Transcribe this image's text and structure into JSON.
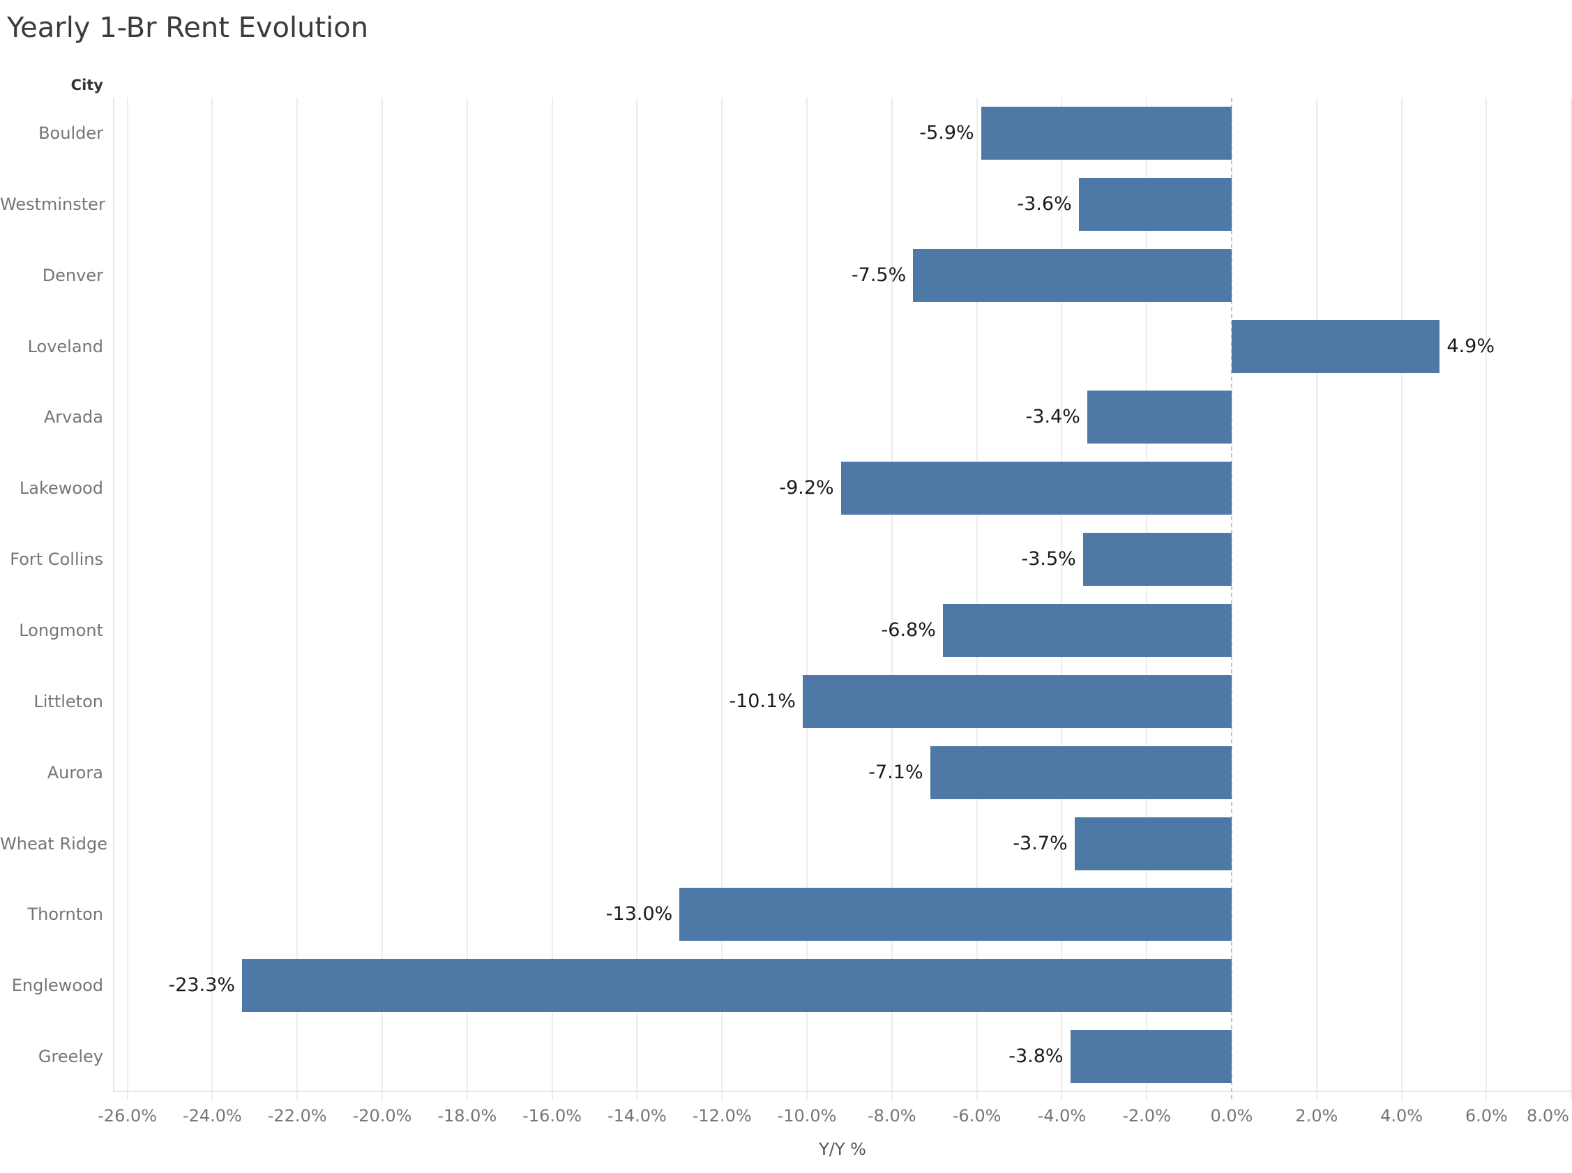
{
  "title": "Yearly 1-Br Rent Evolution",
  "category_axis_header": "City",
  "value_axis_title": "Y/Y %",
  "chart_data": {
    "type": "bar",
    "orientation": "horizontal",
    "title": "Yearly 1-Br Rent Evolution",
    "category_field": "City",
    "value_field": "Y/Y %",
    "grid": true,
    "xlim": [
      -26.34,
      8.0
    ],
    "tick_step_pct": 2,
    "categories": [
      "Boulder",
      "Westminster",
      "Denver",
      "Loveland",
      "Arvada",
      "Lakewood",
      "Fort Collins",
      "Longmont",
      "Littleton",
      "Aurora",
      "Wheat Ridge",
      "Thornton",
      "Englewood",
      "Greeley"
    ],
    "values": [
      -5.9,
      -3.6,
      -7.5,
      4.9,
      -3.4,
      -9.2,
      -3.5,
      -6.8,
      -10.1,
      -7.1,
      -3.7,
      -13.0,
      -23.3,
      -3.8
    ],
    "value_labels": [
      "-5.9%",
      "-3.6%",
      "-7.5%",
      "4.9%",
      "-3.4%",
      "-9.2%",
      "-3.5%",
      "-6.8%",
      "-10.1%",
      "-7.1%",
      "-3.7%",
      "-13.0%",
      "-23.3%",
      "-3.8%"
    ],
    "ticks": [
      {
        "v": -26,
        "label": "-26.0%"
      },
      {
        "v": -24,
        "label": "-24.0%"
      },
      {
        "v": -22,
        "label": "-22.0%"
      },
      {
        "v": -20,
        "label": "-20.0%"
      },
      {
        "v": -18,
        "label": "-18.0%"
      },
      {
        "v": -16,
        "label": "-16.0%"
      },
      {
        "v": -14,
        "label": "-14.0%"
      },
      {
        "v": -12,
        "label": "-12.0%"
      },
      {
        "v": -10,
        "label": "-10.0%"
      },
      {
        "v": -8,
        "label": "-8.0%"
      },
      {
        "v": -6,
        "label": "-6.0%"
      },
      {
        "v": -4,
        "label": "-4.0%"
      },
      {
        "v": -2,
        "label": "-2.0%"
      },
      {
        "v": 0,
        "label": "0.0%"
      },
      {
        "v": 2,
        "label": "2.0%"
      },
      {
        "v": 4,
        "label": "4.0%"
      },
      {
        "v": 6,
        "label": "6.0%"
      },
      {
        "v": 8,
        "label": "8.0%"
      }
    ],
    "colors": {
      "bar": "#4e79a7",
      "gridline": "#ececec",
      "zero_line": "#c4c4c4",
      "plot_border": "#e6e6e6",
      "title_text": "#3b3b3b",
      "category_header_text": "#333333",
      "category_label_text": "#767676",
      "tick_label_text": "#767676",
      "value_label_text": "#1a1a1a",
      "axis_title_text": "#555555"
    }
  }
}
